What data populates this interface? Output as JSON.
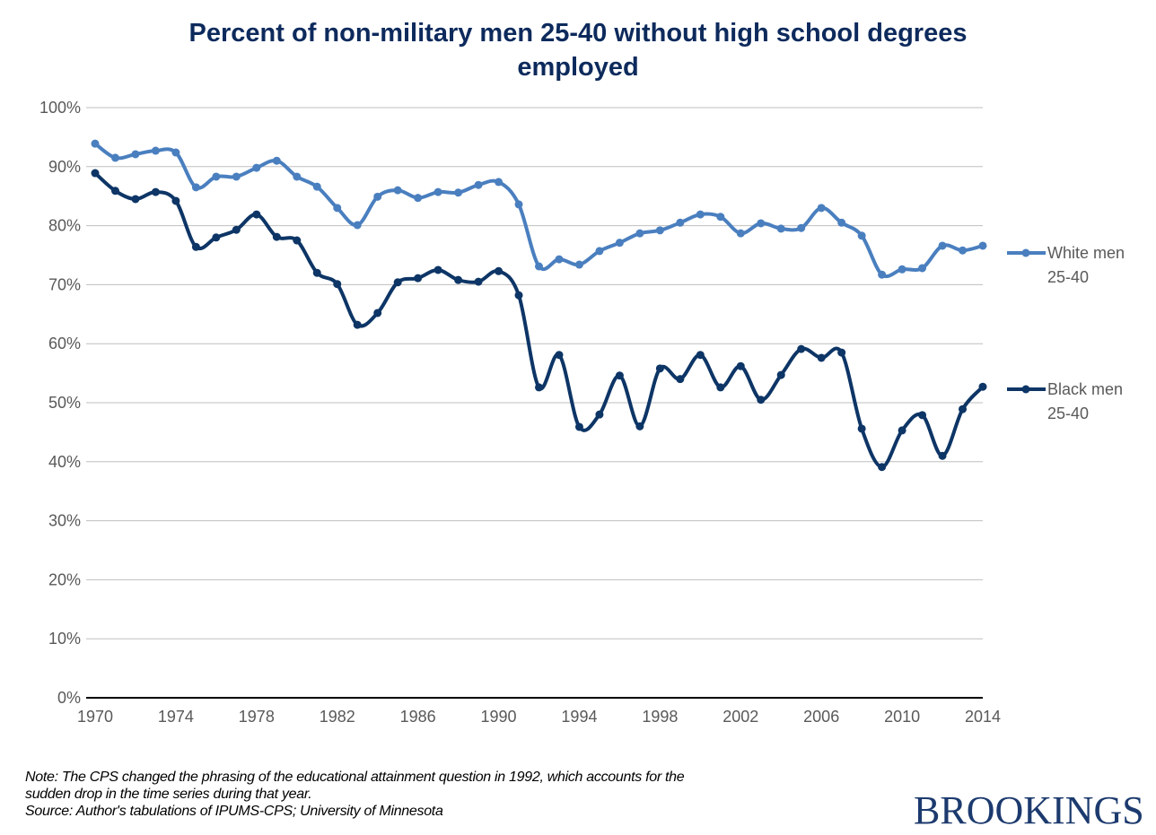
{
  "chart_data": {
    "type": "line",
    "title": "Percent of non-military men 25-40 without high school degrees employed",
    "title_lines": [
      "Percent of non-military men 25-40 without high school degrees",
      "employed"
    ],
    "xlabel": "",
    "ylabel": "",
    "ylim": [
      0,
      100
    ],
    "yticks": [
      "0%",
      "10%",
      "20%",
      "30%",
      "40%",
      "50%",
      "60%",
      "70%",
      "80%",
      "90%",
      "100%"
    ],
    "xlim": [
      1970,
      2014
    ],
    "xticks": [
      "1970",
      "1974",
      "1978",
      "1982",
      "1986",
      "1990",
      "1994",
      "1998",
      "2002",
      "2006",
      "2010",
      "2014"
    ],
    "grid": true,
    "legend_position": "right",
    "x": [
      1970,
      1971,
      1972,
      1973,
      1974,
      1975,
      1976,
      1977,
      1978,
      1979,
      1980,
      1981,
      1982,
      1983,
      1984,
      1985,
      1986,
      1987,
      1988,
      1989,
      1990,
      1991,
      1992,
      1993,
      1994,
      1995,
      1996,
      1997,
      1998,
      1999,
      2000,
      2001,
      2002,
      2003,
      2004,
      2005,
      2006,
      2007,
      2008,
      2009,
      2010,
      2011,
      2012,
      2013,
      2014
    ],
    "series": [
      {
        "name": "White men 25-40",
        "legend_lines": [
          "White men",
          "25-40"
        ],
        "color": "#4a7fbf",
        "values": [
          93.9,
          91.5,
          92.1,
          92.7,
          92.4,
          86.5,
          88.3,
          88.3,
          89.8,
          91.0,
          88.3,
          86.6,
          83.0,
          80.1,
          84.9,
          86.0,
          84.7,
          85.7,
          85.6,
          86.9,
          87.4,
          83.6,
          73.1,
          74.3,
          73.4,
          75.7,
          77.1,
          78.7,
          79.2,
          80.5,
          81.9,
          81.5,
          78.7,
          80.4,
          79.5,
          79.6,
          83.0,
          80.5,
          78.3,
          71.7,
          72.6,
          72.8,
          76.6,
          75.8,
          76.6
        ]
      },
      {
        "name": "Black men 25-40",
        "legend_lines": [
          "Black men",
          "25-40"
        ],
        "color": "#0d3566",
        "values": [
          88.9,
          85.9,
          84.5,
          85.7,
          84.2,
          76.4,
          78.0,
          79.3,
          81.9,
          78.1,
          77.5,
          72.0,
          70.1,
          63.2,
          65.2,
          70.4,
          71.1,
          72.5,
          70.8,
          70.5,
          72.3,
          68.2,
          52.6,
          58.1,
          45.9,
          48.0,
          54.6,
          46.0,
          55.8,
          54.0,
          58.1,
          52.6,
          56.2,
          50.5,
          54.7,
          59.1,
          57.6,
          58.5,
          45.6,
          39.1,
          45.3,
          47.9,
          41.0,
          48.9,
          52.7
        ]
      }
    ]
  },
  "footer": {
    "note_lines": [
      "Note: The CPS changed the phrasing of the educational attainment question in 1992, which accounts for the",
      "sudden drop in the time series during that year."
    ],
    "source": "Source: Author's tabulations of IPUMS-CPS; University of Minnesota",
    "brand": "BROOKINGS"
  }
}
